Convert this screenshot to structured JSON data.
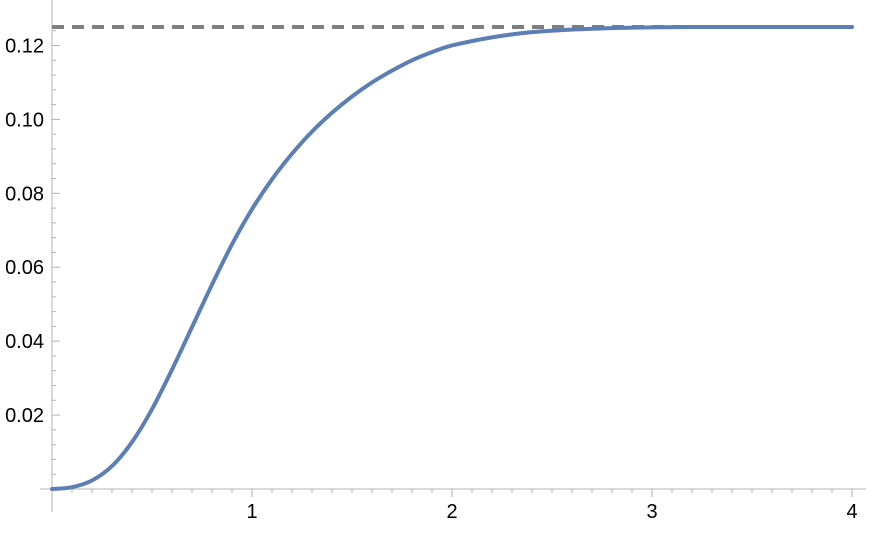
{
  "chart_data": {
    "type": "line",
    "title": "",
    "xlabel": "",
    "ylabel": "",
    "xlim": [
      0,
      4
    ],
    "ylim": [
      0,
      0.125
    ],
    "x_ticks": [
      1,
      2,
      3,
      4
    ],
    "x_tick_labels": [
      "1",
      "2",
      "3",
      "4"
    ],
    "y_ticks": [
      0.02,
      0.04,
      0.06,
      0.08,
      0.1,
      0.12
    ],
    "y_tick_labels": [
      "0.02",
      "0.04",
      "0.06",
      "0.08",
      "0.10",
      "0.12"
    ],
    "grid": false,
    "legend": "none",
    "series": [
      {
        "color": "#5b7fb5",
        "x": [
          0,
          0.1,
          0.2,
          0.3,
          0.4,
          0.5,
          0.6,
          0.7,
          0.8,
          0.9,
          1.0,
          1.1,
          1.2,
          1.3,
          1.4,
          1.5,
          1.6,
          1.7,
          1.8,
          1.9,
          2.0,
          2.2,
          2.4,
          2.6,
          2.8,
          3.0,
          3.2,
          3.5,
          4.0
        ],
        "y": [
          0,
          0.0005,
          0.0023,
          0.0062,
          0.0127,
          0.0216,
          0.0323,
          0.0438,
          0.0553,
          0.0662,
          0.0757,
          0.0838,
          0.0907,
          0.0967,
          0.1018,
          0.1062,
          0.11,
          0.1132,
          0.116,
          0.1182,
          0.12,
          0.1222,
          0.1236,
          0.1243,
          0.1247,
          0.1249,
          0.125,
          0.125,
          0.125
        ]
      }
    ],
    "reference_lines": [
      {
        "y": 0.125,
        "style": "dashed",
        "color": "#7f7f7f"
      }
    ]
  }
}
